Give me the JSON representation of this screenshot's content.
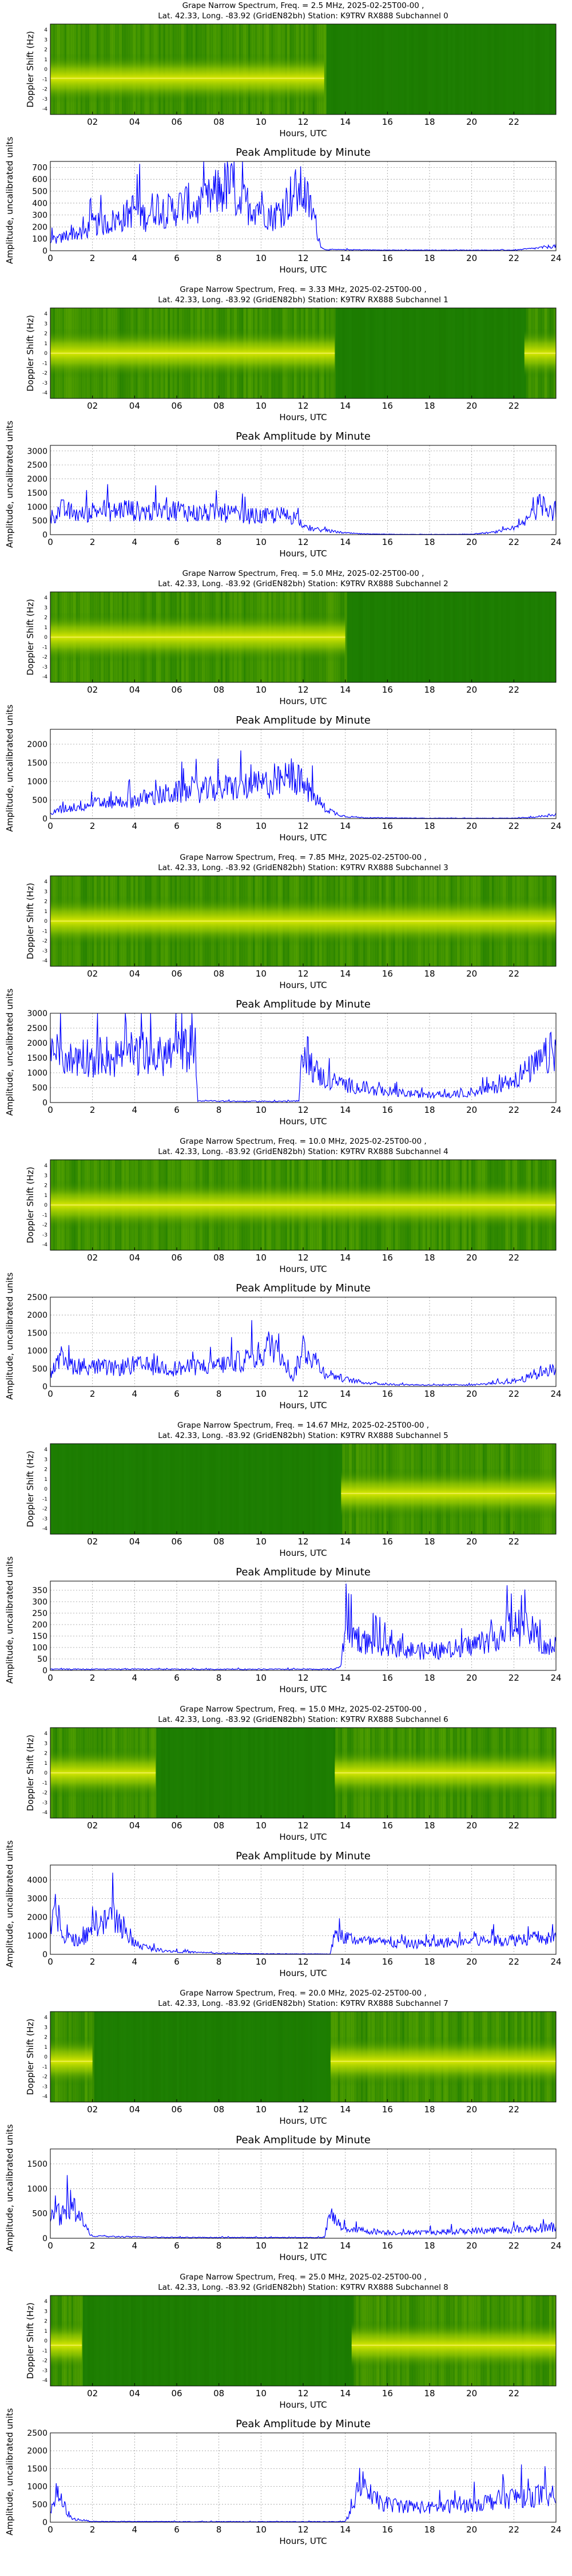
{
  "x_axis": {
    "label": "Hours, UTC",
    "spectrum_ticks": [
      "02",
      "04",
      "06",
      "08",
      "10",
      "12",
      "14",
      "16",
      "18",
      "20",
      "22"
    ],
    "amp_ticks": [
      "0",
      "2",
      "4",
      "6",
      "8",
      "10",
      "12",
      "14",
      "16",
      "18",
      "20",
      "22",
      "24"
    ]
  },
  "spectrum_ylabel": "Doppler Shift (Hz)",
  "spectrum_yticks": [
    "4",
    "3",
    "2",
    "1",
    "0",
    "-1",
    "-2",
    "-3",
    "-4"
  ],
  "amp_title": "Peak Amplitude by Minute",
  "amp_ylabel": "Amplitude, uncalibrated units",
  "colors": {
    "spectrum_bg": "#1b7a00",
    "spectrum_band": "#d8e800",
    "amp_line": "#0000ff"
  },
  "panels": [
    {
      "title1": "Grape Narrow Spectrum, Freq. = 2.5 MHz, 2025-02-25T00-00 ,",
      "title2": "Lat. 42.33, Long. -83.92 (GridEN82bh) Station: K9TRV RX888 Subchannel 0",
      "active": [
        [
          0,
          13
        ]
      ],
      "band_y": 0.6,
      "ymax": 750,
      "yticks": [
        0,
        100,
        200,
        300,
        400,
        500,
        600,
        700
      ],
      "profile": [
        [
          0,
          90
        ],
        [
          0.5,
          100
        ],
        [
          1,
          160
        ],
        [
          1.5,
          130
        ],
        [
          2,
          220
        ],
        [
          2.5,
          220
        ],
        [
          3,
          250
        ],
        [
          3.5,
          280
        ],
        [
          4,
          360
        ],
        [
          4.5,
          280
        ],
        [
          5,
          380
        ],
        [
          5.5,
          330
        ],
        [
          6,
          360
        ],
        [
          6.5,
          400
        ],
        [
          7,
          350
        ],
        [
          7.5,
          420
        ],
        [
          8,
          500
        ],
        [
          8.5,
          560
        ],
        [
          9,
          420
        ],
        [
          9.5,
          380
        ],
        [
          10,
          380
        ],
        [
          10.5,
          280
        ],
        [
          11,
          350
        ],
        [
          11.5,
          480
        ],
        [
          12,
          500
        ],
        [
          12.5,
          300
        ],
        [
          12.8,
          60
        ],
        [
          13,
          10
        ],
        [
          16,
          5
        ],
        [
          20,
          5
        ],
        [
          22,
          5
        ],
        [
          23,
          20
        ],
        [
          24,
          40
        ]
      ]
    },
    {
      "title1": "Grape Narrow Spectrum, Freq. = 3.33 MHz, 2025-02-25T00-00 ,",
      "title2": "Lat. 42.33, Long. -83.92 (GridEN82bh) Station: K9TRV RX888 Subchannel 1",
      "active": [
        [
          0,
          13.5
        ],
        [
          22.5,
          24
        ]
      ],
      "band_y": 0.5,
      "ymax": 3200,
      "yticks": [
        0,
        500,
        1000,
        1500,
        2000,
        2500,
        3000
      ],
      "profile": [
        [
          0,
          600
        ],
        [
          0.5,
          900
        ],
        [
          1,
          800
        ],
        [
          1.5,
          700
        ],
        [
          2,
          850
        ],
        [
          2.5,
          900
        ],
        [
          3,
          800
        ],
        [
          3.5,
          950
        ],
        [
          4,
          850
        ],
        [
          5,
          800
        ],
        [
          6,
          900
        ],
        [
          7,
          750
        ],
        [
          8,
          800
        ],
        [
          9,
          700
        ],
        [
          10,
          650
        ],
        [
          11,
          700
        ],
        [
          11.8,
          600
        ],
        [
          12,
          250
        ],
        [
          13,
          150
        ],
        [
          14,
          60
        ],
        [
          15,
          20
        ],
        [
          17,
          10
        ],
        [
          19,
          10
        ],
        [
          20,
          20
        ],
        [
          21,
          80
        ],
        [
          22,
          200
        ],
        [
          22.5,
          400
        ],
        [
          23,
          900
        ],
        [
          23.5,
          1200
        ],
        [
          24,
          700
        ]
      ]
    },
    {
      "title1": "Grape Narrow Spectrum, Freq. = 5.0 MHz, 2025-02-25T00-00 ,",
      "title2": "Lat. 42.33, Long. -83.92 (GridEN82bh) Station: K9TRV RX888 Subchannel 2",
      "active": [
        [
          0,
          14
        ]
      ],
      "band_y": 0.5,
      "ymax": 2400,
      "yticks": [
        0,
        500,
        1000,
        1500,
        2000
      ],
      "profile": [
        [
          0,
          150
        ],
        [
          0.5,
          250
        ],
        [
          1,
          300
        ],
        [
          1.5,
          350
        ],
        [
          2,
          400
        ],
        [
          3,
          450
        ],
        [
          4,
          500
        ],
        [
          5,
          600
        ],
        [
          6,
          700
        ],
        [
          7,
          750
        ],
        [
          8,
          800
        ],
        [
          9,
          850
        ],
        [
          10,
          900
        ],
        [
          11,
          1000
        ],
        [
          11.5,
          1200
        ],
        [
          12,
          900
        ],
        [
          12.5,
          600
        ],
        [
          13,
          300
        ],
        [
          13.5,
          150
        ],
        [
          14,
          60
        ],
        [
          15,
          20
        ],
        [
          18,
          10
        ],
        [
          22,
          10
        ],
        [
          23,
          40
        ],
        [
          24,
          120
        ]
      ]
    },
    {
      "title1": "Grape Narrow Spectrum, Freq. = 7.85 MHz, 2025-02-25T00-00 ,",
      "title2": "Lat. 42.33, Long. -83.92 (GridEN82bh) Station: K9TRV RX888 Subchannel 3",
      "active": [
        [
          0,
          24
        ]
      ],
      "band_y": 0.5,
      "ymax": 3000,
      "yticks": [
        0,
        500,
        1000,
        1500,
        2000,
        2500,
        3000
      ],
      "profile": [
        [
          0,
          1500
        ],
        [
          0.5,
          1700
        ],
        [
          1,
          1400
        ],
        [
          1.5,
          1600
        ],
        [
          2,
          1500
        ],
        [
          2.5,
          1700
        ],
        [
          3,
          1400
        ],
        [
          3.5,
          1900
        ],
        [
          4,
          1600
        ],
        [
          5,
          1500
        ],
        [
          6,
          1700
        ],
        [
          6.8,
          1900
        ],
        [
          7,
          60
        ],
        [
          9,
          40
        ],
        [
          11,
          40
        ],
        [
          11.8,
          50
        ],
        [
          12,
          2000
        ],
        [
          12.5,
          1100
        ],
        [
          13,
          800
        ],
        [
          14,
          600
        ],
        [
          15,
          450
        ],
        [
          16,
          350
        ],
        [
          17,
          300
        ],
        [
          18,
          250
        ],
        [
          19,
          250
        ],
        [
          20,
          350
        ],
        [
          21,
          500
        ],
        [
          22,
          800
        ],
        [
          23,
          1200
        ],
        [
          24,
          1800
        ]
      ]
    },
    {
      "title1": "Grape Narrow Spectrum, Freq. = 10.0 MHz, 2025-02-25T00-00 ,",
      "title2": "Lat. 42.33, Long. -83.92 (GridEN82bh) Station: K9TRV RX888 Subchannel 4",
      "active": [
        [
          0,
          24
        ]
      ],
      "band_y": 0.5,
      "ymax": 2500,
      "yticks": [
        0,
        500,
        1000,
        1500,
        2000,
        2500
      ],
      "profile": [
        [
          0,
          400
        ],
        [
          0.5,
          700
        ],
        [
          1,
          600
        ],
        [
          2,
          550
        ],
        [
          3,
          500
        ],
        [
          4,
          600
        ],
        [
          5,
          550
        ],
        [
          6,
          500
        ],
        [
          7,
          550
        ],
        [
          8,
          600
        ],
        [
          9,
          700
        ],
        [
          10,
          900
        ],
        [
          10.5,
          1200
        ],
        [
          11,
          1000
        ],
        [
          11.5,
          200
        ],
        [
          12,
          1100
        ],
        [
          12.5,
          800
        ],
        [
          13,
          400
        ],
        [
          14,
          200
        ],
        [
          15,
          100
        ],
        [
          16,
          60
        ],
        [
          18,
          40
        ],
        [
          20,
          50
        ],
        [
          21,
          80
        ],
        [
          22,
          150
        ],
        [
          23,
          300
        ],
        [
          23.5,
          500
        ],
        [
          24,
          400
        ]
      ]
    },
    {
      "title1": "Grape Narrow Spectrum, Freq. = 14.67 MHz, 2025-02-25T00-00 ,",
      "title2": "Lat. 42.33, Long. -83.92 (GridEN82bh) Station: K9TRV RX888 Subchannel 5",
      "active": [
        [
          13.8,
          24
        ]
      ],
      "band_y": 0.55,
      "ymax": 390,
      "yticks": [
        0,
        50,
        100,
        150,
        200,
        250,
        300,
        350
      ],
      "profile": [
        [
          0,
          5
        ],
        [
          5,
          5
        ],
        [
          10,
          5
        ],
        [
          13.5,
          5
        ],
        [
          13.8,
          20
        ],
        [
          14,
          200
        ],
        [
          14.5,
          150
        ],
        [
          15,
          120
        ],
        [
          16,
          110
        ],
        [
          17,
          90
        ],
        [
          18,
          80
        ],
        [
          19,
          90
        ],
        [
          20,
          110
        ],
        [
          21,
          140
        ],
        [
          21.5,
          170
        ],
        [
          22,
          200
        ],
        [
          22.5,
          180
        ],
        [
          23,
          160
        ],
        [
          23.5,
          90
        ],
        [
          24,
          110
        ]
      ]
    },
    {
      "title1": "Grape Narrow Spectrum, Freq. = 15.0 MHz, 2025-02-25T00-00 ,",
      "title2": "Lat. 42.33, Long. -83.92 (GridEN82bh) Station: K9TRV RX888 Subchannel 6",
      "active": [
        [
          0,
          5
        ],
        [
          13.5,
          24
        ]
      ],
      "band_y": 0.5,
      "ymax": 4800,
      "yticks": [
        0,
        1000,
        2000,
        3000,
        4000
      ],
      "profile": [
        [
          0,
          1200
        ],
        [
          0.3,
          2500
        ],
        [
          0.6,
          800
        ],
        [
          1,
          900
        ],
        [
          1.5,
          600
        ],
        [
          2,
          1800
        ],
        [
          2.5,
          1600
        ],
        [
          3,
          2200
        ],
        [
          3.5,
          1200
        ],
        [
          4,
          600
        ],
        [
          4.5,
          400
        ],
        [
          5,
          250
        ],
        [
          6,
          150
        ],
        [
          8,
          60
        ],
        [
          10,
          30
        ],
        [
          12,
          20
        ],
        [
          13.3,
          20
        ],
        [
          13.5,
          1200
        ],
        [
          14,
          900
        ],
        [
          15,
          700
        ],
        [
          16,
          600
        ],
        [
          17,
          550
        ],
        [
          18,
          600
        ],
        [
          19,
          650
        ],
        [
          20,
          700
        ],
        [
          21,
          750
        ],
        [
          22,
          800
        ],
        [
          23,
          900
        ],
        [
          24,
          800
        ]
      ]
    },
    {
      "title1": "Grape Narrow Spectrum, Freq. = 20.0 MHz, 2025-02-25T00-00 ,",
      "title2": "Lat. 42.33, Long. -83.92 (GridEN82bh) Station: K9TRV RX888 Subchannel 7",
      "active": [
        [
          0,
          2
        ],
        [
          13.3,
          24
        ]
      ],
      "band_y": 0.55,
      "ymax": 1800,
      "yticks": [
        0,
        500,
        1000,
        1500
      ],
      "profile": [
        [
          0,
          300
        ],
        [
          0.3,
          600
        ],
        [
          0.5,
          400
        ],
        [
          1,
          700
        ],
        [
          1.3,
          500
        ],
        [
          1.7,
          200
        ],
        [
          2,
          40
        ],
        [
          5,
          20
        ],
        [
          9,
          15
        ],
        [
          13,
          15
        ],
        [
          13.3,
          500
        ],
        [
          13.6,
          300
        ],
        [
          14,
          200
        ],
        [
          15,
          150
        ],
        [
          16,
          120
        ],
        [
          17,
          110
        ],
        [
          18,
          120
        ],
        [
          19,
          130
        ],
        [
          20,
          150
        ],
        [
          21,
          160
        ],
        [
          22,
          180
        ],
        [
          23,
          200
        ],
        [
          24,
          230
        ]
      ]
    },
    {
      "title1": "Grape Narrow Spectrum, Freq. = 25.0 MHz, 2025-02-25T00-00 ,",
      "title2": "Lat. 42.33, Long. -83.92 (GridEN82bh) Station: K9TRV RX888 Subchannel 8",
      "active": [
        [
          0,
          1.5
        ],
        [
          14.3,
          24
        ]
      ],
      "band_y": 0.55,
      "ymax": 2500,
      "yticks": [
        0,
        500,
        1000,
        1500,
        2000,
        2500
      ],
      "profile": [
        [
          0,
          300
        ],
        [
          0.3,
          800
        ],
        [
          0.6,
          500
        ],
        [
          1,
          100
        ],
        [
          2,
          20
        ],
        [
          8,
          15
        ],
        [
          14,
          15
        ],
        [
          14.4,
          500
        ],
        [
          14.8,
          1300
        ],
        [
          15,
          700
        ],
        [
          16,
          500
        ],
        [
          17,
          450
        ],
        [
          18,
          400
        ],
        [
          19,
          450
        ],
        [
          20,
          500
        ],
        [
          21,
          600
        ],
        [
          22,
          700
        ],
        [
          23,
          750
        ],
        [
          24,
          700
        ]
      ]
    }
  ]
}
